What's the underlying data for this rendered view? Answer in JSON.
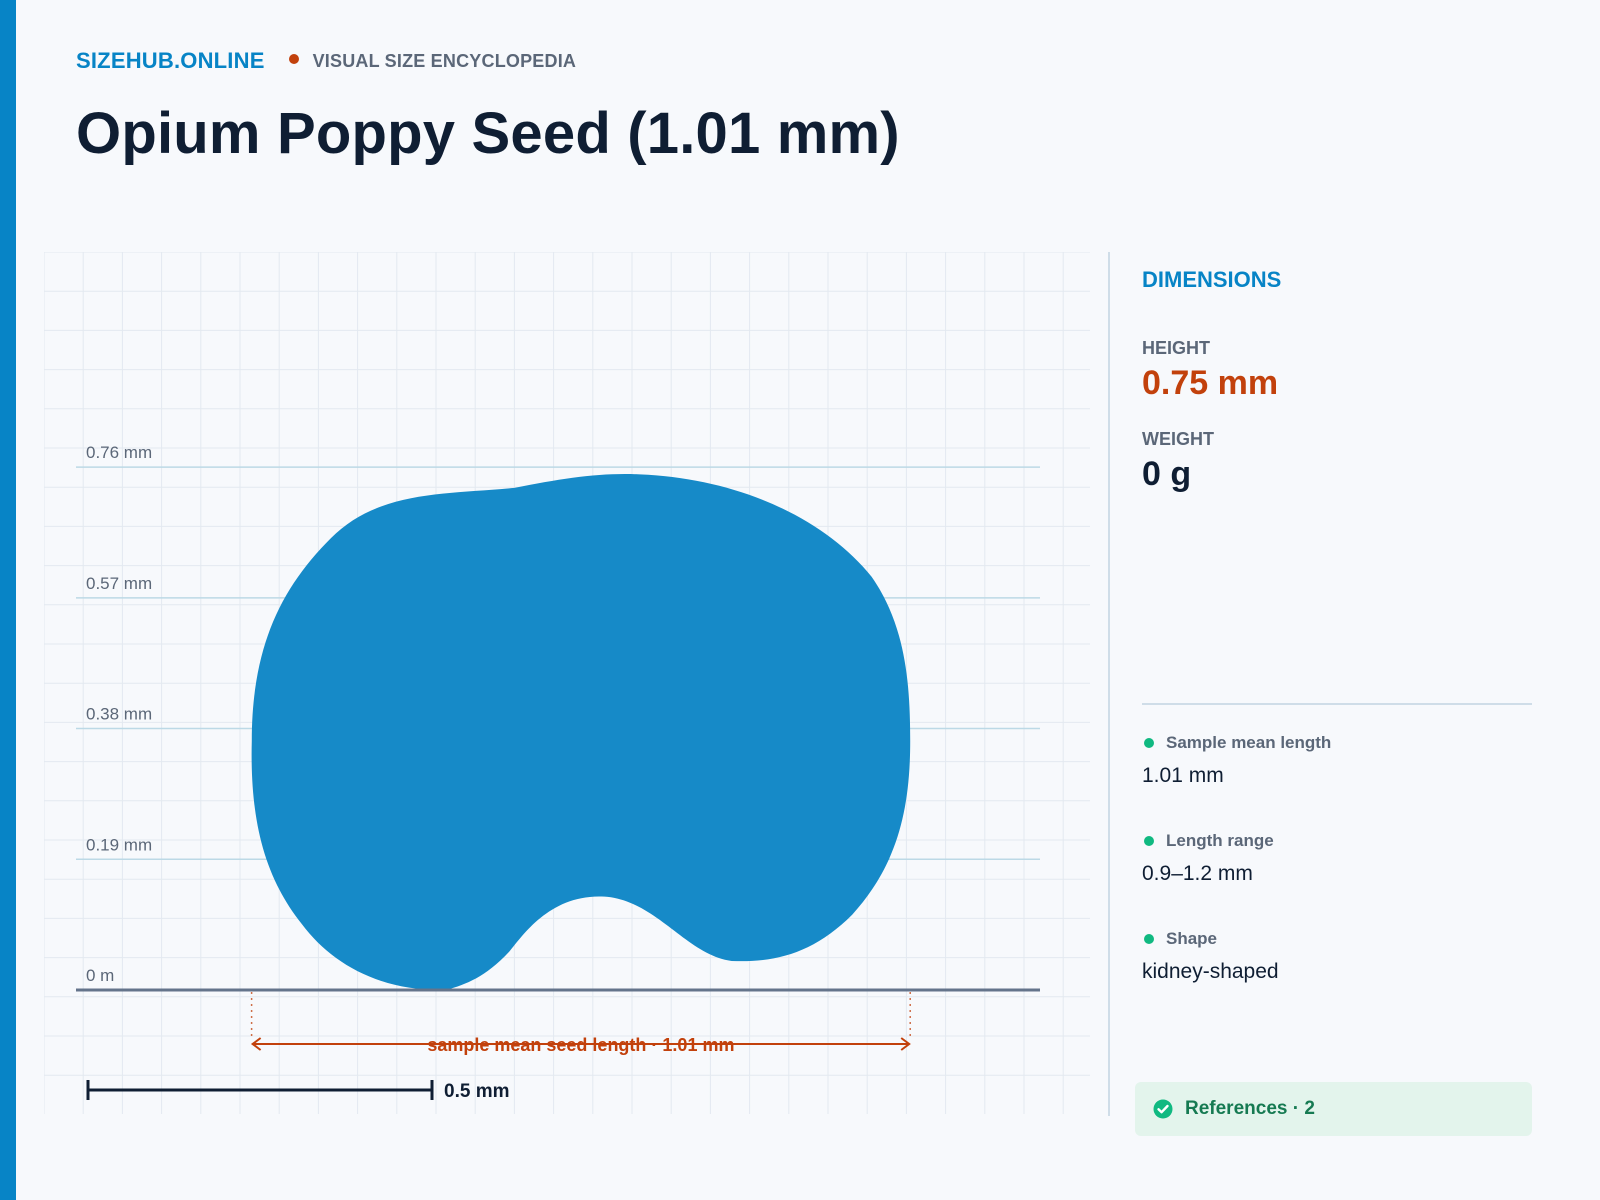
{
  "header": {
    "brand": "SIZEHUB.ONLINE",
    "tagline": "VISUAL SIZE ENCYCLOPEDIA",
    "title": "Opium Poppy Seed (1.01 mm)"
  },
  "chart_data": {
    "type": "size-comparison",
    "object_name": "Opium Poppy Seed",
    "object_shape": "kidney-shaped",
    "object_height_mm": 0.75,
    "object_length_mm": 1.01,
    "y_unit": "mm",
    "y_ticks": [
      {
        "value": 0.76,
        "label": "0.76 mm"
      },
      {
        "value": 0.57,
        "label": "0.57 mm"
      },
      {
        "value": 0.38,
        "label": "0.38 mm"
      },
      {
        "value": 0.19,
        "label": "0.19 mm"
      },
      {
        "value": 0,
        "label": "0 m"
      }
    ],
    "width_annotation": "sample mean seed length · 1.01 mm",
    "scale_bar": {
      "value_mm": 0.5,
      "label": "0.5 mm"
    },
    "grid": true,
    "colors": {
      "shape": "#168ac8",
      "annotation": "#c2410c",
      "axis": "#64748b",
      "guide": "#bcd9e6"
    }
  },
  "panel": {
    "title": "DIMENSIONS",
    "height": {
      "label": "HEIGHT",
      "value": "0.75 mm"
    },
    "weight": {
      "label": "WEIGHT",
      "value": "0 g"
    },
    "facts": [
      {
        "label": "Sample mean length",
        "value": "1.01 mm"
      },
      {
        "label": "Length range",
        "value": "0.9–1.2 mm"
      },
      {
        "label": "Shape",
        "value": "kidney-shaped"
      }
    ],
    "references": {
      "label": "References · 2",
      "icon": "check-circle-icon"
    }
  },
  "colors": {
    "accent": "#0784c6",
    "highlight": "#c2410c",
    "text": "#0f1e33",
    "muted": "#5b6778",
    "success": "#10b981"
  }
}
